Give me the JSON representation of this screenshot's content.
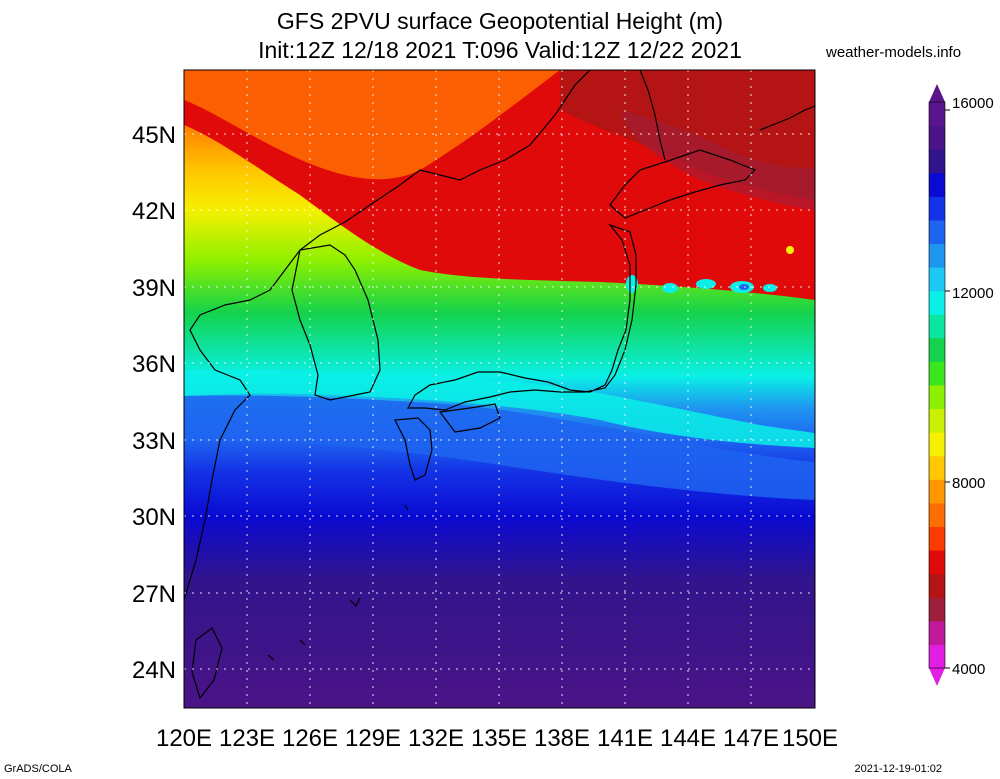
{
  "header": {
    "title_line1": "GFS 2PVU surface Geopotential Height (m)",
    "title_line2": "Init:12Z 12/18 2021 T:096 Valid:12Z 12/22 2021",
    "source": "weather-models.info"
  },
  "footer": {
    "left": "GrADS/COLA",
    "right": "2021-12-19-01:02"
  },
  "map": {
    "lon_labels": [
      "120E",
      "123E",
      "126E",
      "129E",
      "132E",
      "135E",
      "138E",
      "141E",
      "144E",
      "147E",
      "150E"
    ],
    "lat_labels": [
      "45N",
      "42N",
      "39N",
      "36N",
      "33N",
      "30N",
      "27N",
      "24N"
    ],
    "grid": "dotted",
    "field": "Geopotential Height on 2PVU surface (m)"
  },
  "colorbar": {
    "labels": [
      "16000",
      "12000",
      "8000",
      "4000"
    ],
    "colors": [
      "#e11ee1",
      "#c0199b",
      "#9e1e3c",
      "#b41414",
      "#e10a0a",
      "#fa3c00",
      "#ff6e00",
      "#ff9600",
      "#ffc800",
      "#f5f000",
      "#c8f000",
      "#8cf000",
      "#3ce61e",
      "#14d24b",
      "#0ae6a0",
      "#0af0e6",
      "#1ec8f5",
      "#1e96f0",
      "#1e64f0",
      "#1432e6",
      "#0a0ad2",
      "#32148c",
      "#4b1487",
      "#5a148c"
    ]
  }
}
